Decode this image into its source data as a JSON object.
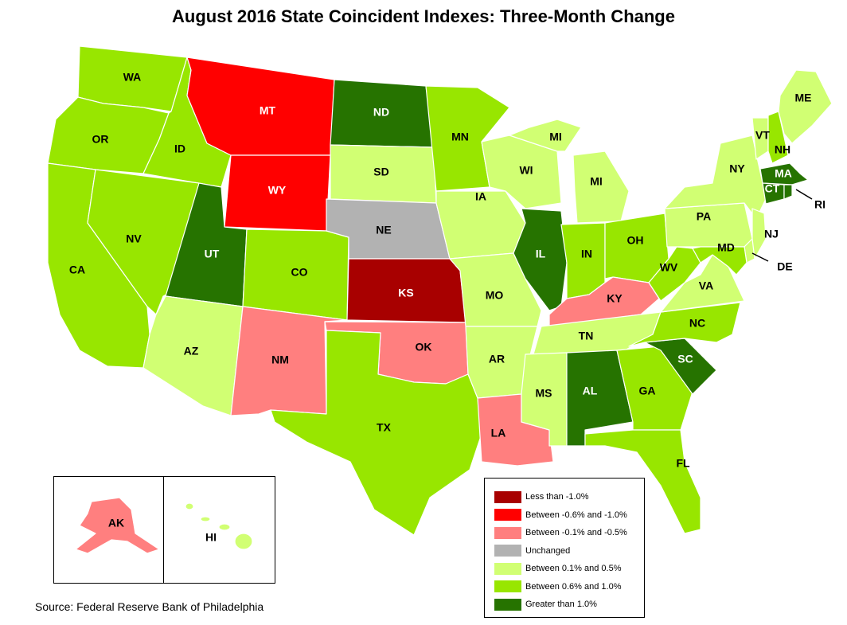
{
  "title": "August 2016 State Coincident Indexes: Three-Month Change",
  "source": "Source: Federal Reserve Bank of Philadelphia",
  "colors": {
    "lt_neg1": "#a80000",
    "neg06_1": "#ff0000",
    "neg01_05": "#ff7f7f",
    "unchanged": "#b2b2b2",
    "pos01_05": "#d1ff73",
    "pos06_1": "#98e600",
    "gt1": "#267300"
  },
  "legend": [
    {
      "key": "lt_neg1",
      "label": "Less than -1.0%"
    },
    {
      "key": "neg06_1",
      "label": "Between -0.6% and -1.0%"
    },
    {
      "key": "neg01_05",
      "label": "Between -0.1% and -0.5%"
    },
    {
      "key": "unchanged",
      "label": "Unchanged"
    },
    {
      "key": "pos01_05",
      "label": "Between 0.1% and 0.5%"
    },
    {
      "key": "pos06_1",
      "label": "Between 0.6% and 1.0%"
    },
    {
      "key": "gt1",
      "label": "Greater than 1.0%"
    }
  ],
  "states": {
    "WA": {
      "label": "WA",
      "category": "pos06_1"
    },
    "OR": {
      "label": "OR",
      "category": "pos06_1"
    },
    "CA": {
      "label": "CA",
      "category": "pos06_1"
    },
    "ID": {
      "label": "ID",
      "category": "pos06_1"
    },
    "NV": {
      "label": "NV",
      "category": "pos06_1"
    },
    "MT": {
      "label": "MT",
      "category": "neg06_1"
    },
    "WY": {
      "label": "WY",
      "category": "neg06_1"
    },
    "UT": {
      "label": "UT",
      "category": "gt1"
    },
    "AZ": {
      "label": "AZ",
      "category": "pos01_05"
    },
    "CO": {
      "label": "CO",
      "category": "pos06_1"
    },
    "NM": {
      "label": "NM",
      "category": "neg01_05"
    },
    "ND": {
      "label": "ND",
      "category": "gt1"
    },
    "SD": {
      "label": "SD",
      "category": "pos01_05"
    },
    "NE": {
      "label": "NE",
      "category": "unchanged"
    },
    "KS": {
      "label": "KS",
      "category": "lt_neg1"
    },
    "OK": {
      "label": "OK",
      "category": "neg01_05"
    },
    "TX": {
      "label": "TX",
      "category": "pos06_1"
    },
    "MN": {
      "label": "MN",
      "category": "pos06_1"
    },
    "IA": {
      "label": "IA",
      "category": "pos01_05"
    },
    "MO": {
      "label": "MO",
      "category": "pos01_05"
    },
    "AR": {
      "label": "AR",
      "category": "pos01_05"
    },
    "LA": {
      "label": "LA",
      "category": "neg01_05"
    },
    "WI": {
      "label": "WI",
      "category": "pos01_05"
    },
    "IL": {
      "label": "IL",
      "category": "gt1"
    },
    "MI": {
      "label": "MI",
      "category": "pos01_05"
    },
    "MI_UP": {
      "label": "MI",
      "category": "pos01_05"
    },
    "IN": {
      "label": "IN",
      "category": "pos06_1"
    },
    "OH": {
      "label": "OH",
      "category": "pos06_1"
    },
    "KY": {
      "label": "KY",
      "category": "neg01_05"
    },
    "TN": {
      "label": "TN",
      "category": "pos01_05"
    },
    "MS": {
      "label": "MS",
      "category": "pos01_05"
    },
    "AL": {
      "label": "AL",
      "category": "gt1"
    },
    "GA": {
      "label": "GA",
      "category": "pos06_1"
    },
    "FL": {
      "label": "FL",
      "category": "pos06_1"
    },
    "SC": {
      "label": "SC",
      "category": "gt1"
    },
    "NC": {
      "label": "NC",
      "category": "pos06_1"
    },
    "VA": {
      "label": "VA",
      "category": "pos01_05"
    },
    "WV": {
      "label": "WV",
      "category": "pos06_1"
    },
    "PA": {
      "label": "PA",
      "category": "pos01_05"
    },
    "NY": {
      "label": "NY",
      "category": "pos01_05"
    },
    "VT": {
      "label": "VT",
      "category": "pos01_05"
    },
    "NH": {
      "label": "NH",
      "category": "pos06_1"
    },
    "ME": {
      "label": "ME",
      "category": "pos01_05"
    },
    "MA": {
      "label": "MA",
      "category": "gt1"
    },
    "CT": {
      "label": "CT",
      "category": "gt1"
    },
    "RI": {
      "label": "RI",
      "category": "gt1"
    },
    "NJ": {
      "label": "NJ",
      "category": "pos01_05"
    },
    "DE": {
      "label": "DE",
      "category": "pos01_05"
    },
    "MD": {
      "label": "MD",
      "category": "pos06_1"
    },
    "AK": {
      "label": "AK",
      "category": "neg01_05"
    },
    "HI": {
      "label": "HI",
      "category": "pos01_05"
    }
  }
}
